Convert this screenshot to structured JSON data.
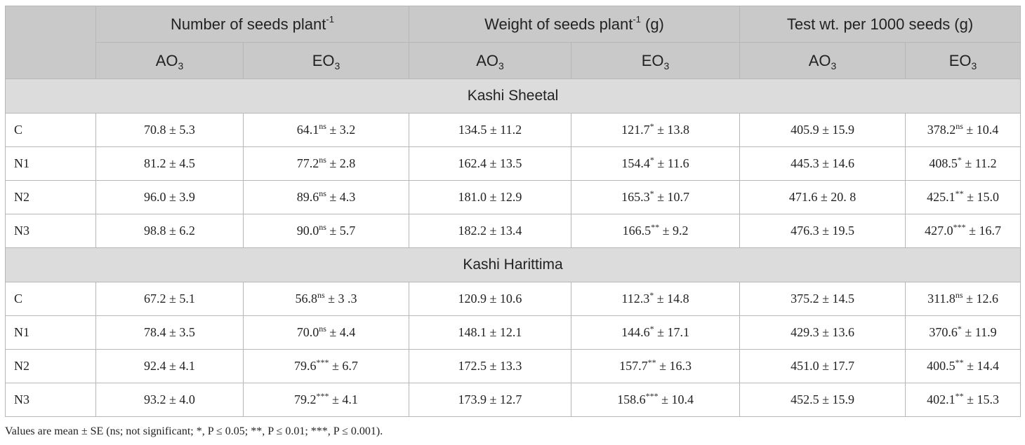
{
  "header": {
    "groups": [
      {
        "base": "Number of seeds plant",
        "sup": "-1",
        "tail": ""
      },
      {
        "base": "Weight of seeds plant",
        "sup": "-1",
        "tail": " (g)"
      },
      {
        "base": "Test wt. per 1000 seeds (g)",
        "sup": "",
        "tail": ""
      }
    ],
    "sub_base": [
      "AO",
      "EO"
    ],
    "sub_index": "3"
  },
  "sections": [
    {
      "name": "Kashi Sheetal",
      "rows": [
        {
          "trt": "C",
          "cells": [
            {
              "pre": "70.8",
              "sup": "",
              "post": " ± 5.3"
            },
            {
              "pre": "64.1",
              "sup": "ns",
              "post": " ± 3.2"
            },
            {
              "pre": "134.5",
              "sup": "",
              "post": " ± 11.2"
            },
            {
              "pre": "121.7",
              "sup": "*",
              "post": " ± 13.8"
            },
            {
              "pre": "405.9",
              "sup": "",
              "post": " ± 15.9"
            },
            {
              "pre": "378.2",
              "sup": "ns",
              "post": " ± 10.4"
            }
          ]
        },
        {
          "trt": "N1",
          "cells": [
            {
              "pre": "81.2",
              "sup": "",
              "post": " ± 4.5"
            },
            {
              "pre": "77.2",
              "sup": "ns",
              "post": " ± 2.8"
            },
            {
              "pre": "162.4",
              "sup": "",
              "post": " ± 13.5"
            },
            {
              "pre": "154.4",
              "sup": "*",
              "post": " ± 11.6"
            },
            {
              "pre": "445.3",
              "sup": "",
              "post": " ± 14.6"
            },
            {
              "pre": "408.5",
              "sup": "*",
              "post": " ± 11.2"
            }
          ]
        },
        {
          "trt": "N2",
          "cells": [
            {
              "pre": "96.0",
              "sup": "",
              "post": " ± 3.9"
            },
            {
              "pre": "89.6",
              "sup": "ns",
              "post": " ± 4.3"
            },
            {
              "pre": "181.0",
              "sup": "",
              "post": " ± 12.9"
            },
            {
              "pre": "165.3",
              "sup": "*",
              "post": " ± 10.7"
            },
            {
              "pre": "471.6",
              "sup": "",
              "post": " ± 20. 8"
            },
            {
              "pre": "425.1",
              "sup": "**",
              "post": " ± 15.0"
            }
          ]
        },
        {
          "trt": "N3",
          "cells": [
            {
              "pre": "98.8",
              "sup": "",
              "post": " ± 6.2"
            },
            {
              "pre": "90.0",
              "sup": "ns",
              "post": " ± 5.7"
            },
            {
              "pre": "182.2",
              "sup": "",
              "post": " ± 13.4"
            },
            {
              "pre": "166.5",
              "sup": "**",
              "post": " ± 9.2"
            },
            {
              "pre": "476.3",
              "sup": "",
              "post": " ± 19.5"
            },
            {
              "pre": "427.0",
              "sup": "***",
              "post": " ± 16.7"
            }
          ]
        }
      ]
    },
    {
      "name": "Kashi Harittima",
      "rows": [
        {
          "trt": "C",
          "cells": [
            {
              "pre": "67.2",
              "sup": "",
              "post": " ± 5.1"
            },
            {
              "pre": "56.8",
              "sup": "ns",
              "post": " ± 3 .3"
            },
            {
              "pre": "120.9",
              "sup": "",
              "post": " ± 10.6"
            },
            {
              "pre": "112.3",
              "sup": "*",
              "post": " ± 14.8"
            },
            {
              "pre": "375.2",
              "sup": "",
              "post": " ± 14.5"
            },
            {
              "pre": "311.8",
              "sup": "ns",
              "post": " ± 12.6"
            }
          ]
        },
        {
          "trt": "N1",
          "cells": [
            {
              "pre": "78.4",
              "sup": "",
              "post": " ± 3.5"
            },
            {
              "pre": "70.0",
              "sup": "ns",
              "post": " ± 4.4"
            },
            {
              "pre": "148.1",
              "sup": "",
              "post": " ± 12.1"
            },
            {
              "pre": "144.6",
              "sup": "*",
              "post": " ± 17.1"
            },
            {
              "pre": "429.3",
              "sup": "",
              "post": " ± 13.6"
            },
            {
              "pre": "370.6",
              "sup": "*",
              "post": " ± 11.9"
            }
          ]
        },
        {
          "trt": "N2",
          "cells": [
            {
              "pre": "92.4",
              "sup": "",
              "post": " ± 4.1"
            },
            {
              "pre": "79.6",
              "sup": "***",
              "post": " ± 6.7"
            },
            {
              "pre": "172.5",
              "sup": "",
              "post": " ± 13.3"
            },
            {
              "pre": "157.7",
              "sup": "**",
              "post": " ± 16.3"
            },
            {
              "pre": "451.0",
              "sup": "",
              "post": " ± 17.7"
            },
            {
              "pre": "400.5",
              "sup": "**",
              "post": " ± 14.4"
            }
          ]
        },
        {
          "trt": "N3",
          "cells": [
            {
              "pre": "93.2",
              "sup": "",
              "post": " ± 4.0"
            },
            {
              "pre": "79.2",
              "sup": "***",
              "post": " ± 4.1"
            },
            {
              "pre": "173.9",
              "sup": "",
              "post": " ± 12.7"
            },
            {
              "pre": "158.6",
              "sup": "***",
              "post": " ± 10.4"
            },
            {
              "pre": "452.5",
              "sup": "",
              "post": " ± 15.9"
            },
            {
              "pre": "402.1",
              "sup": "**",
              "post": " ± 15.3"
            }
          ]
        }
      ]
    }
  ],
  "footnote": "Values are mean ± SE (ns; not significant; *, P ≤ 0.05; **, P ≤ 0.01; ***, P ≤ 0.001)."
}
